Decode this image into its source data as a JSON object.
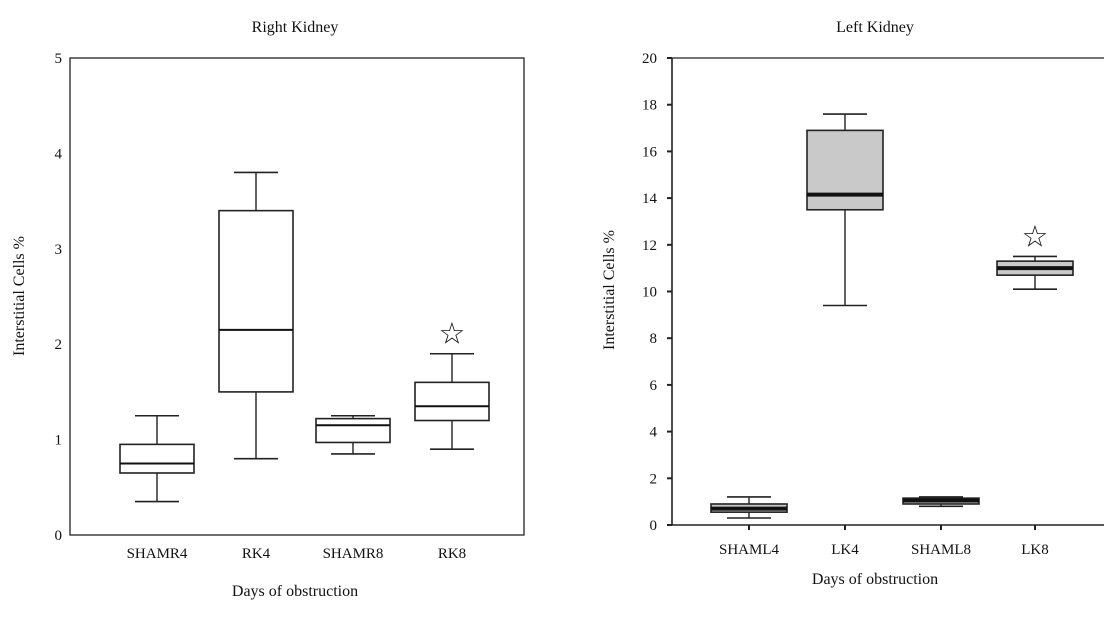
{
  "chart_data": [
    {
      "type": "box",
      "title": "Right Kidney",
      "xlabel": "Days of obstruction",
      "ylabel": "Interstitial Cells %",
      "ylim": [
        0,
        5
      ],
      "yticks": [
        0,
        1,
        2,
        3,
        4,
        5
      ],
      "frame": "full",
      "grid": false,
      "categories": [
        "SHAMR4",
        "RK4",
        "SHAMR8",
        "RK8"
      ],
      "boxes": [
        {
          "min": 0.35,
          "q1": 0.65,
          "median": 0.75,
          "q3": 0.95,
          "max": 1.25,
          "fill": "#ffffff",
          "marker": ""
        },
        {
          "min": 0.8,
          "q1": 1.5,
          "median": 2.15,
          "q3": 3.4,
          "max": 3.8,
          "fill": "#ffffff",
          "marker": ""
        },
        {
          "min": 0.85,
          "q1": 0.97,
          "median": 1.15,
          "q3": 1.22,
          "max": 1.25,
          "fill": "#ffffff",
          "marker": ""
        },
        {
          "min": 0.9,
          "q1": 1.2,
          "median": 1.35,
          "q3": 1.6,
          "max": 1.9,
          "fill": "#ffffff",
          "marker": "☆"
        }
      ]
    },
    {
      "type": "box",
      "title": "Left Kidney",
      "xlabel": "Days of obstruction",
      "ylabel": "Interstitial Cells %",
      "ylim": [
        0,
        20
      ],
      "yticks": [
        0,
        2,
        4,
        6,
        8,
        10,
        12,
        14,
        16,
        18,
        20
      ],
      "frame": "open",
      "grid": false,
      "categories": [
        "SHAML4",
        "LK4",
        "SHAML8",
        "LK8"
      ],
      "boxes": [
        {
          "min": 0.3,
          "q1": 0.55,
          "median": 0.7,
          "q3": 0.9,
          "max": 1.2,
          "fill": "#c9c9c9",
          "marker": ""
        },
        {
          "min": 9.4,
          "q1": 13.5,
          "median": 14.15,
          "q3": 16.9,
          "max": 17.6,
          "fill": "#c9c9c9",
          "marker": ""
        },
        {
          "min": 0.8,
          "q1": 0.9,
          "median": 1.05,
          "q3": 1.15,
          "max": 1.2,
          "fill": "#c9c9c9",
          "marker": ""
        },
        {
          "min": 10.1,
          "q1": 10.7,
          "median": 11.0,
          "q3": 11.3,
          "max": 11.5,
          "fill": "#c9c9c9",
          "marker": "☆"
        }
      ]
    }
  ]
}
